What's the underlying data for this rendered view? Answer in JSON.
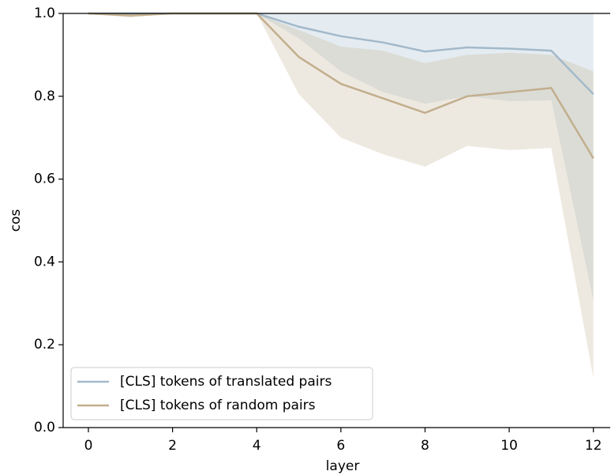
{
  "chart_data": {
    "type": "line",
    "xlabel": "layer",
    "ylabel": "cos",
    "x": [
      0,
      1,
      2,
      3,
      4,
      5,
      6,
      7,
      8,
      9,
      10,
      11,
      12
    ],
    "xlim": [
      -0.6,
      12.4
    ],
    "xticks": [
      0,
      2,
      4,
      6,
      8,
      10,
      12
    ],
    "ylim": [
      0,
      1
    ],
    "yticks": [
      {
        "value": 0,
        "label": "0.0"
      },
      0.2,
      0.4,
      0.6,
      0.8,
      {
        "value": 1,
        "label": "1.0"
      }
    ],
    "legend": "lower left",
    "series": [
      {
        "name": "[CLS] tokens of translated pairs",
        "color": "#a3b9cb",
        "band_color": "#a7bfcf",
        "values": [
          1.0,
          1.0,
          1.0,
          1.0,
          1.0,
          0.968,
          0.945,
          0.93,
          0.908,
          0.918,
          0.915,
          0.91,
          0.805
        ],
        "upper": [
          1.0,
          1.0,
          1.0,
          1.0,
          1.0,
          1.0,
          1.0,
          1.0,
          1.0,
          1.0,
          1.0,
          1.0,
          1.0
        ],
        "lower": [
          1.0,
          1.0,
          1.0,
          1.0,
          1.0,
          0.94,
          0.86,
          0.81,
          0.782,
          0.8,
          0.788,
          0.79,
          0.307
        ]
      },
      {
        "name": "[CLS] tokens of random pairs",
        "color": "#c2ae8e",
        "band_color": "#c8b597",
        "values": [
          1.0,
          0.995,
          1.0,
          1.0,
          1.0,
          0.895,
          0.83,
          0.795,
          0.76,
          0.8,
          0.81,
          0.82,
          0.65
        ],
        "upper": [
          1.0,
          1.0,
          1.0,
          1.0,
          1.0,
          0.96,
          0.92,
          0.91,
          0.88,
          0.9,
          0.905,
          0.9,
          0.86
        ],
        "lower": [
          1.0,
          0.99,
          1.0,
          1.0,
          1.0,
          0.805,
          0.7,
          0.66,
          0.63,
          0.68,
          0.67,
          0.675,
          0.12
        ]
      }
    ]
  }
}
